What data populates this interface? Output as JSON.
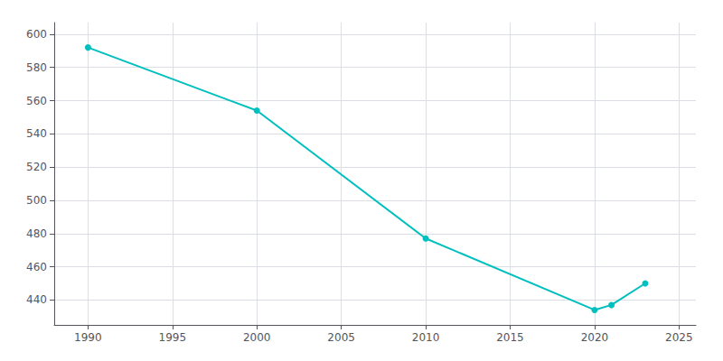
{
  "chart_data": {
    "type": "line",
    "x": [
      1990,
      2000,
      2010,
      2020,
      2021,
      2023
    ],
    "values": [
      592,
      554,
      477,
      434,
      437,
      450
    ],
    "color": "#00BFBF",
    "marker": "circle",
    "xlim": [
      1988,
      2026
    ],
    "ylim": [
      425,
      607
    ],
    "xticks": [
      1990,
      1995,
      2000,
      2005,
      2010,
      2015,
      2020,
      2025
    ],
    "yticks": [
      440,
      460,
      480,
      500,
      520,
      540,
      560,
      580,
      600
    ],
    "grid": true
  }
}
